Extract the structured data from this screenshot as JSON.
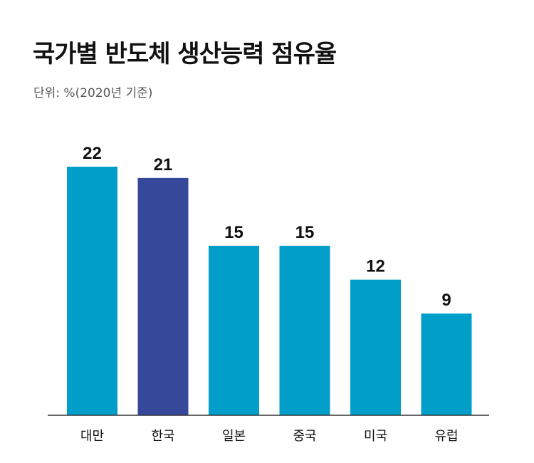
{
  "chart_data": {
    "type": "bar",
    "title": "국가별 반도체 생산능력 점유율",
    "subtitle": "단위: %(2020년 기준)",
    "categories": [
      "대만",
      "한국",
      "일본",
      "중국",
      "미국",
      "유럽"
    ],
    "values": [
      22,
      21,
      15,
      15,
      12,
      9
    ],
    "ylim": [
      0,
      22
    ],
    "grid": false,
    "highlight_category": "한국",
    "colors": {
      "default": "#009ec9",
      "highlight": "#35489a",
      "axis": "#333333"
    }
  }
}
